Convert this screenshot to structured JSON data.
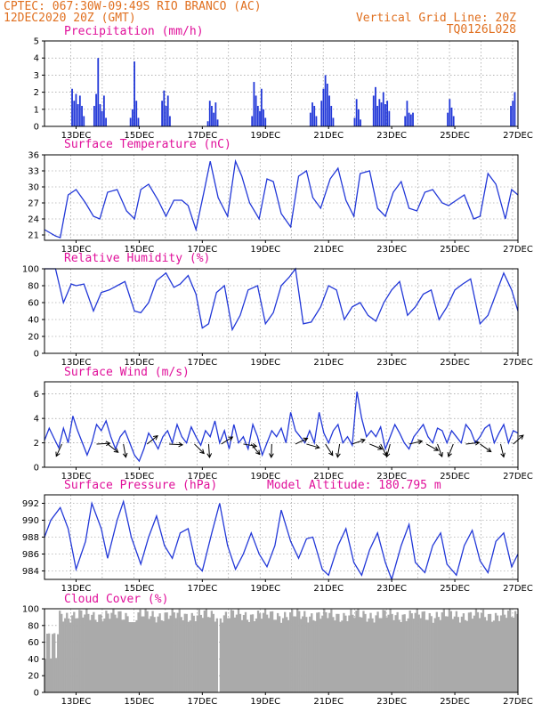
{
  "header": {
    "left_line1": "CPTEC:   067:30W-09:49S  RIO BRANCO (AC)",
    "left_line2": "12DEC2020 20Z (GMT)",
    "right_line1": "Vertical Grid Line: 20Z",
    "right_line2": "TQ0126L028"
  },
  "colors": {
    "header_text": "#e07020",
    "panel_title": "#e0109a",
    "series": "#2238d8",
    "cloud_fill": "#aaaaaa"
  },
  "chart_data": [
    {
      "type": "bar",
      "title": "Precipitation (mm/h)",
      "x_tick_labels": [
        "13DEC",
        "15DEC",
        "17DEC",
        "19DEC",
        "21DEC",
        "23DEC",
        "25DEC",
        "27DEC"
      ],
      "ylim": [
        0,
        5
      ],
      "y_ticks": [
        0,
        1,
        2,
        3,
        4,
        5
      ],
      "grid": true,
      "bursts": [
        {
          "day": 12.85,
          "values": [
            2.2,
            1.5,
            1.9,
            1.3,
            1.8,
            1.2,
            0.6
          ]
        },
        {
          "day": 13.55,
          "values": [
            1.2,
            1.9,
            4.0,
            1.3,
            0.9,
            1.8,
            0.5
          ]
        },
        {
          "day": 14.7,
          "values": [
            0.5,
            1.0,
            3.8,
            1.5,
            0.5
          ]
        },
        {
          "day": 15.7,
          "values": [
            1.5,
            2.1,
            1.2,
            1.8,
            0.6
          ]
        },
        {
          "day": 17.15,
          "values": [
            0.3,
            1.5,
            1.2,
            0.8,
            1.4,
            0.4
          ]
        },
        {
          "day": 18.55,
          "values": [
            0.6,
            2.6,
            1.8,
            1.2,
            0.9
          ]
        },
        {
          "day": 18.85,
          "values": [
            2.2,
            1.0,
            0.5
          ]
        },
        {
          "day": 20.4,
          "values": [
            0.8,
            1.4,
            1.2,
            0.6
          ]
        },
        {
          "day": 20.75,
          "values": [
            1.5,
            2.2,
            3.0,
            2.5,
            1.8,
            1.2,
            0.5
          ]
        },
        {
          "day": 21.8,
          "values": [
            0.5,
            1.6,
            1.0,
            0.4
          ]
        },
        {
          "day": 22.4,
          "values": [
            1.8,
            2.3,
            1.2,
            1.6,
            1.4,
            2.0,
            1.3,
            1.5,
            0.9
          ]
        },
        {
          "day": 23.4,
          "values": [
            0.6,
            1.5,
            0.8,
            0.7,
            0.8
          ]
        },
        {
          "day": 24.75,
          "values": [
            0.8,
            1.6,
            1.1,
            0.6
          ]
        },
        {
          "day": 26.75,
          "values": [
            1.2,
            1.5,
            2.0
          ]
        }
      ]
    },
    {
      "type": "line",
      "title": "Surface Temperature (nC)",
      "x_tick_labels": [
        "13DEC",
        "15DEC",
        "17DEC",
        "19DEC",
        "21DEC",
        "23DEC",
        "25DEC",
        "27DEC"
      ],
      "ylim": [
        20,
        36
      ],
      "y_ticks": [
        21,
        24,
        27,
        30,
        33,
        36
      ],
      "grid": true,
      "x": [
        12.0,
        12.35,
        12.5,
        12.75,
        13.0,
        13.3,
        13.55,
        13.75,
        14.0,
        14.3,
        14.6,
        14.85,
        15.05,
        15.3,
        15.6,
        15.85,
        16.1,
        16.35,
        16.55,
        16.8,
        17.05,
        17.25,
        17.5,
        17.8,
        18.05,
        18.25,
        18.5,
        18.8,
        19.05,
        19.25,
        19.5,
        19.8,
        20.05,
        20.3,
        20.5,
        20.75,
        21.05,
        21.3,
        21.55,
        21.8,
        22.0,
        22.3,
        22.55,
        22.8,
        23.05,
        23.3,
        23.55,
        23.8,
        24.05,
        24.3,
        24.6,
        24.8,
        25.05,
        25.3,
        25.6,
        25.8,
        26.05,
        26.3,
        26.6,
        26.8,
        27.0
      ],
      "values": [
        22.0,
        20.8,
        20.5,
        28.5,
        29.5,
        27.0,
        24.5,
        24.0,
        29.0,
        29.5,
        25.5,
        24.0,
        29.5,
        30.5,
        27.5,
        24.5,
        27.5,
        27.5,
        26.5,
        22.0,
        29.0,
        34.8,
        28.0,
        24.5,
        34.8,
        32.0,
        27.0,
        24.0,
        31.5,
        31.0,
        25.0,
        22.5,
        32.0,
        33.0,
        28.0,
        26.0,
        31.5,
        33.5,
        27.5,
        24.5,
        32.5,
        33.0,
        26.0,
        24.5,
        29.0,
        31.0,
        26.0,
        25.5,
        29.0,
        29.5,
        27.0,
        26.5,
        27.5,
        28.5,
        24.0,
        24.5,
        32.5,
        30.5,
        24.0,
        29.5,
        28.5
      ]
    },
    {
      "type": "line",
      "title": "Relative Humidity (%)",
      "x_tick_labels": [
        "13DEC",
        "15DEC",
        "17DEC",
        "19DEC",
        "21DEC",
        "23DEC",
        "25DEC",
        "27DEC"
      ],
      "ylim": [
        0,
        100
      ],
      "y_ticks": [
        0,
        20,
        40,
        60,
        80,
        100
      ],
      "grid": true,
      "x": [
        12.0,
        12.35,
        12.6,
        12.85,
        13.0,
        13.25,
        13.55,
        13.8,
        14.05,
        14.3,
        14.55,
        14.85,
        15.05,
        15.3,
        15.55,
        15.85,
        16.1,
        16.3,
        16.55,
        16.8,
        17.0,
        17.2,
        17.45,
        17.7,
        17.95,
        18.2,
        18.45,
        18.75,
        19.0,
        19.25,
        19.5,
        19.75,
        19.95,
        20.2,
        20.45,
        20.75,
        21.0,
        21.25,
        21.5,
        21.75,
        22.0,
        22.25,
        22.5,
        22.75,
        23.0,
        23.25,
        23.5,
        23.75,
        24.0,
        24.25,
        24.5,
        24.75,
        25.0,
        25.25,
        25.5,
        25.8,
        26.05,
        26.3,
        26.55,
        26.8,
        27.0
      ],
      "values": [
        100,
        100,
        60,
        82,
        80,
        82,
        50,
        72,
        75,
        80,
        85,
        50,
        48,
        60,
        86,
        95,
        78,
        82,
        92,
        70,
        30,
        35,
        72,
        80,
        28,
        45,
        75,
        80,
        35,
        48,
        80,
        90,
        100,
        35,
        37,
        55,
        80,
        75,
        40,
        55,
        60,
        45,
        38,
        60,
        75,
        85,
        45,
        55,
        70,
        75,
        40,
        55,
        75,
        82,
        88,
        35,
        45,
        70,
        95,
        75,
        50
      ]
    },
    {
      "type": "line",
      "title": "Surface Wind (m/s)",
      "x_tick_labels": [
        "13DEC",
        "15DEC",
        "17DEC",
        "19DEC",
        "21DEC",
        "23DEC",
        "25DEC",
        "27DEC"
      ],
      "ylim": [
        0,
        7
      ],
      "y_ticks": [
        0,
        2,
        4,
        6
      ],
      "grid": true,
      "x": [
        12.0,
        12.15,
        12.3,
        12.45,
        12.6,
        12.75,
        12.9,
        13.05,
        13.2,
        13.35,
        13.5,
        13.65,
        13.8,
        13.95,
        14.1,
        14.25,
        14.4,
        14.55,
        14.7,
        14.85,
        15.0,
        15.15,
        15.3,
        15.45,
        15.6,
        15.75,
        15.9,
        16.05,
        16.2,
        16.35,
        16.5,
        16.65,
        16.8,
        16.95,
        17.1,
        17.25,
        17.4,
        17.55,
        17.7,
        17.85,
        18.0,
        18.15,
        18.3,
        18.45,
        18.6,
        18.75,
        18.9,
        19.05,
        19.2,
        19.35,
        19.5,
        19.65,
        19.8,
        19.95,
        20.1,
        20.25,
        20.4,
        20.55,
        20.7,
        20.85,
        21.0,
        21.15,
        21.3,
        21.45,
        21.6,
        21.75,
        21.9,
        22.05,
        22.2,
        22.35,
        22.5,
        22.65,
        22.8,
        22.95,
        23.1,
        23.25,
        23.4,
        23.55,
        23.7,
        23.85,
        24.0,
        24.15,
        24.3,
        24.45,
        24.6,
        24.75,
        24.9,
        25.05,
        25.2,
        25.35,
        25.5,
        25.65,
        25.8,
        25.95,
        26.1,
        26.25,
        26.4,
        26.55,
        26.7,
        26.85,
        27.0
      ],
      "values": [
        2.2,
        3.2,
        2.4,
        1.6,
        3.2,
        2.0,
        4.2,
        3.0,
        2.0,
        1.0,
        2.0,
        3.5,
        3.0,
        3.8,
        2.5,
        1.5,
        2.5,
        3.0,
        2.0,
        1.0,
        0.5,
        1.5,
        2.8,
        2.2,
        1.5,
        2.5,
        3.0,
        2.0,
        3.5,
        2.5,
        2.0,
        3.3,
        2.5,
        1.8,
        3.0,
        2.5,
        3.8,
        2.0,
        3.0,
        1.5,
        3.5,
        2.0,
        2.5,
        1.5,
        3.5,
        2.5,
        1.0,
        2.0,
        3.0,
        2.5,
        3.2,
        2.0,
        4.5,
        3.0,
        2.5,
        2.0,
        3.0,
        2.0,
        4.5,
        2.8,
        2.0,
        3.0,
        3.5,
        2.0,
        2.5,
        1.8,
        6.2,
        4.0,
        2.5,
        3.0,
        2.5,
        3.3,
        1.5,
        2.5,
        3.5,
        2.8,
        2.0,
        1.5,
        2.5,
        3.0,
        3.5,
        2.5,
        2.0,
        3.2,
        3.0,
        2.0,
        3.0,
        2.5,
        2.0,
        3.5,
        3.0,
        2.0,
        2.5,
        3.2,
        3.5,
        2.0,
        2.8,
        3.5,
        2.0,
        3.0,
        2.8
      ]
    },
    {
      "type": "line",
      "title": "Surface Pressure (hPa)",
      "annotation": "Model Altitude: 180.795 m",
      "x_tick_labels": [
        "13DEC",
        "15DEC",
        "17DEC",
        "19DEC",
        "21DEC",
        "23DEC",
        "25DEC",
        "27DEC"
      ],
      "ylim": [
        983,
        993
      ],
      "y_ticks": [
        984,
        986,
        988,
        990,
        992
      ],
      "grid": true,
      "x": [
        12.0,
        12.2,
        12.5,
        12.75,
        13.0,
        13.3,
        13.5,
        13.8,
        14.0,
        14.3,
        14.5,
        14.75,
        15.05,
        15.3,
        15.55,
        15.8,
        16.05,
        16.3,
        16.55,
        16.8,
        17.0,
        17.3,
        17.55,
        17.8,
        18.05,
        18.3,
        18.55,
        18.8,
        19.05,
        19.3,
        19.5,
        19.8,
        20.05,
        20.3,
        20.5,
        20.8,
        21.0,
        21.3,
        21.55,
        21.8,
        22.05,
        22.3,
        22.55,
        22.8,
        23.0,
        23.3,
        23.55,
        23.75,
        24.05,
        24.3,
        24.55,
        24.75,
        25.05,
        25.3,
        25.55,
        25.8,
        26.05,
        26.3,
        26.55,
        26.8,
        27.0
      ],
      "values": [
        988.0,
        990.0,
        991.5,
        989.0,
        984.2,
        987.5,
        992.0,
        989.0,
        985.5,
        990.0,
        992.2,
        988.0,
        984.8,
        988.0,
        990.5,
        987.0,
        985.5,
        988.5,
        989.0,
        984.8,
        984.0,
        988.5,
        992.0,
        987.0,
        984.2,
        986.0,
        988.5,
        986.0,
        984.5,
        987.0,
        991.2,
        987.5,
        985.5,
        987.8,
        988.0,
        984.2,
        983.5,
        987.0,
        989.0,
        985.0,
        983.5,
        986.5,
        988.5,
        985.0,
        983.0,
        987.0,
        989.5,
        985.0,
        983.8,
        987.0,
        988.5,
        984.8,
        983.5,
        987.0,
        988.8,
        985.2,
        983.8,
        987.5,
        988.5,
        984.5,
        986.0
      ]
    },
    {
      "type": "bar",
      "title": "Cloud Cover (%)",
      "x_tick_labels": [
        "13DEC",
        "15DEC",
        "17DEC",
        "19DEC",
        "21DEC",
        "23DEC",
        "25DEC",
        "27DEC"
      ],
      "ylim": [
        0,
        100
      ],
      "y_ticks": [
        0,
        20,
        40,
        60,
        80,
        100
      ],
      "grid": true,
      "note": "near-full cloud cover throughout, mostly 85-100%, dips to about 40% on 12DEC and 0% near 17.5DEC"
    }
  ]
}
